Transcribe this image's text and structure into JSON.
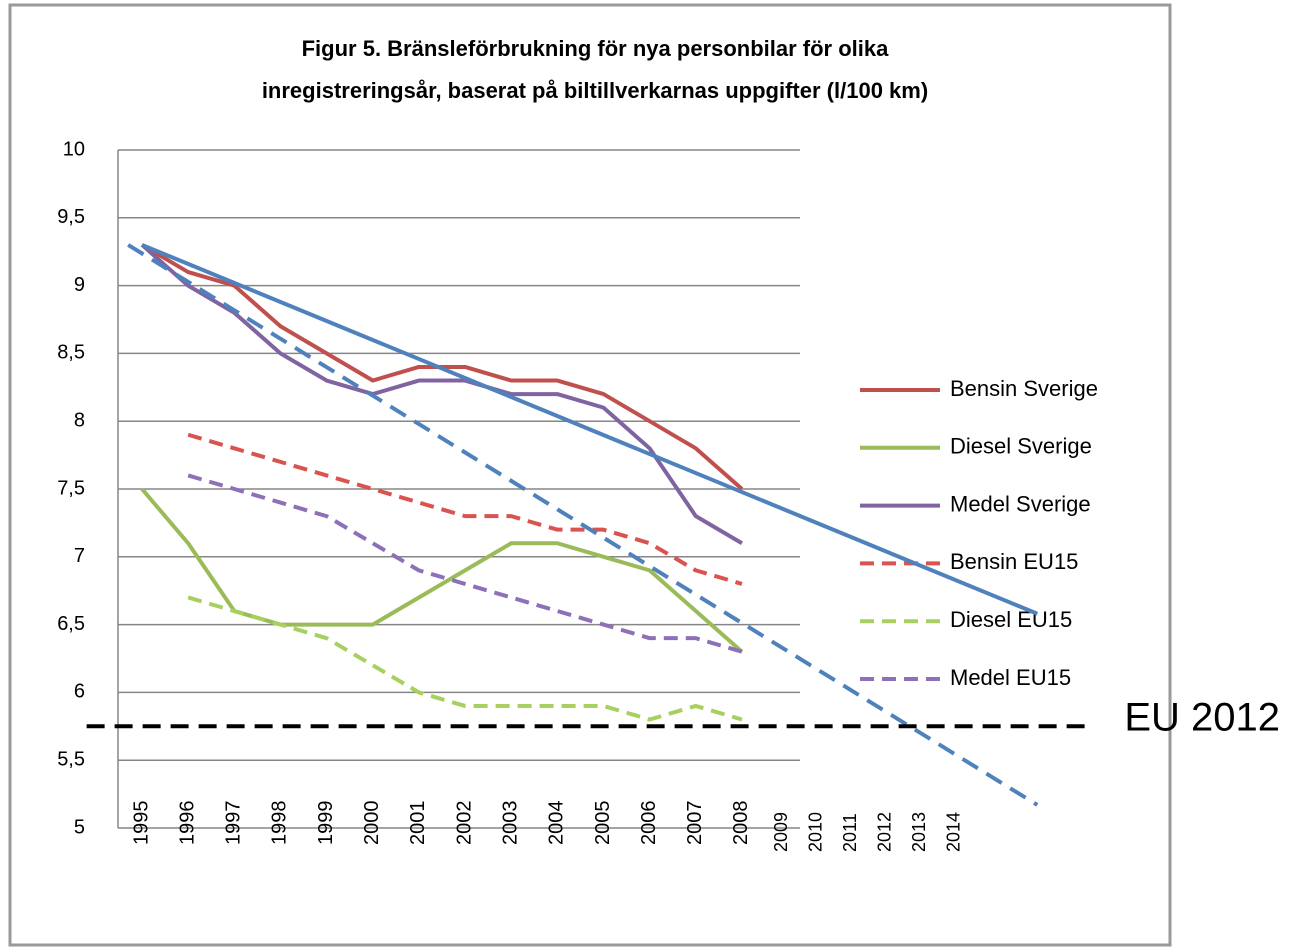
{
  "chart_data": {
    "type": "line",
    "title": "Figur 5. Bränsleförbrukning för nya personbilar för olika",
    "subtitle": "inregistreringsår, baserat på biltillverkarnas uppgifter (l/100 km)",
    "categories": [
      "1995",
      "1996",
      "1997",
      "1998",
      "1999",
      "2000",
      "2001",
      "2002",
      "2003",
      "2004",
      "2005",
      "2006",
      "2007",
      "2008"
    ],
    "extra_axis_labels": [
      "2009",
      "2010",
      "2011",
      "2012",
      "2013",
      "2014"
    ],
    "ylim": [
      5,
      10
    ],
    "yticks": [
      5,
      {
        "value": 5.5,
        "label": "5,5"
      },
      6,
      {
        "value": 6.5,
        "label": "6,5"
      },
      7,
      {
        "value": 7.5,
        "label": "7,5"
      },
      8,
      {
        "value": 8.5,
        "label": "8,5"
      },
      9,
      {
        "value": 9.5,
        "label": "9,5"
      },
      10
    ],
    "grid": true,
    "legend": "right",
    "series": [
      {
        "name": "Bensin Sverige",
        "color": "#c0504d",
        "dashed": false,
        "values": [
          9.3,
          9.1,
          9.0,
          8.7,
          8.5,
          8.3,
          8.4,
          8.4,
          8.3,
          8.3,
          8.2,
          8.0,
          7.8,
          7.5
        ]
      },
      {
        "name": "Diesel Sverige",
        "color": "#9bbb59",
        "dashed": false,
        "values": [
          7.5,
          7.1,
          6.6,
          6.5,
          6.5,
          6.5,
          6.7,
          6.9,
          7.1,
          7.1,
          7.0,
          6.9,
          6.6,
          6.3
        ]
      },
      {
        "name": "Medel Sverige",
        "color": "#8064a2",
        "dashed": false,
        "values": [
          9.3,
          9.0,
          8.8,
          8.5,
          8.3,
          8.2,
          8.3,
          8.3,
          8.2,
          8.2,
          8.1,
          7.8,
          7.3,
          7.1
        ]
      },
      {
        "name": "Bensin EU15",
        "color": "#d9534f",
        "dashed": true,
        "values": [
          null,
          7.9,
          7.8,
          7.7,
          7.6,
          7.5,
          7.4,
          7.3,
          7.3,
          7.2,
          7.2,
          7.1,
          6.9,
          6.8
        ]
      },
      {
        "name": "Diesel EU15",
        "color": "#a8d060",
        "dashed": true,
        "values": [
          null,
          6.7,
          6.6,
          6.5,
          6.4,
          6.2,
          6.0,
          5.9,
          5.9,
          5.9,
          5.9,
          5.8,
          5.9,
          5.8
        ]
      },
      {
        "name": "Medel EU15",
        "color": "#8e70b8",
        "dashed": true,
        "values": [
          null,
          7.6,
          7.5,
          7.4,
          7.3,
          7.1,
          6.9,
          6.8,
          6.7,
          6.6,
          6.5,
          6.4,
          6.4,
          6.3
        ]
      }
    ],
    "trend_lines": [
      {
        "color": "#4f81bd",
        "dashed": false,
        "x": [
          1995,
          2014.4
        ],
        "y": [
          9.3,
          6.58
        ]
      },
      {
        "color": "#4f81bd",
        "dashed": true,
        "x": [
          1994.7,
          2014.4
        ],
        "y": [
          9.3,
          5.17
        ]
      },
      {
        "color": "#000000",
        "dashed": true,
        "x": [
          1993.8,
          2015.5
        ],
        "y": [
          5.75,
          5.75
        ]
      }
    ],
    "annotation": "EU 2012"
  }
}
